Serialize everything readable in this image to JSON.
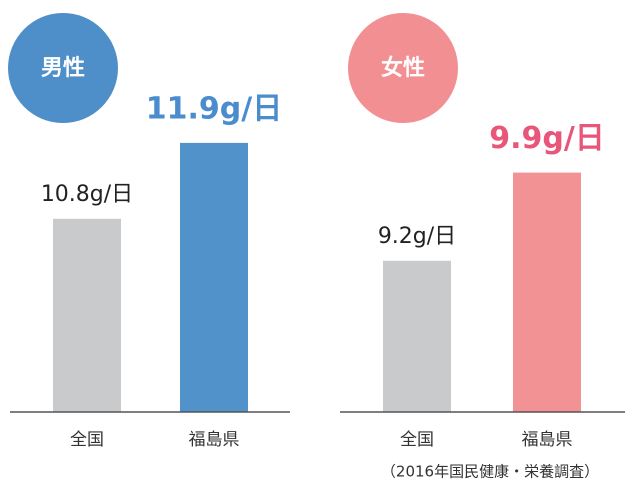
{
  "chart_data": [
    {
      "type": "bar",
      "title": "男性",
      "title_color": "#4f8fc9",
      "categories": [
        "全国",
        "福島県"
      ],
      "values": [
        10.8,
        11.9
      ],
      "value_labels": [
        "10.8g/日",
        "11.9g/日"
      ],
      "colors": [
        "#c9cacc",
        "#5292cb"
      ],
      "label_colors": [
        "#222222",
        "#4a8ccc"
      ],
      "ylim": [
        8,
        12
      ]
    },
    {
      "type": "bar",
      "title": "女性",
      "title_color": "#f28f92",
      "categories": [
        "全国",
        "福島県"
      ],
      "values": [
        9.2,
        9.9
      ],
      "value_labels": [
        "9.2g/日",
        "9.9g/日"
      ],
      "colors": [
        "#c9cacc",
        "#f39295"
      ],
      "label_colors": [
        "#222222",
        "#e8567a"
      ],
      "ylim": [
        8,
        10
      ]
    }
  ],
  "note": "（2016年国民健康・栄養調査）"
}
